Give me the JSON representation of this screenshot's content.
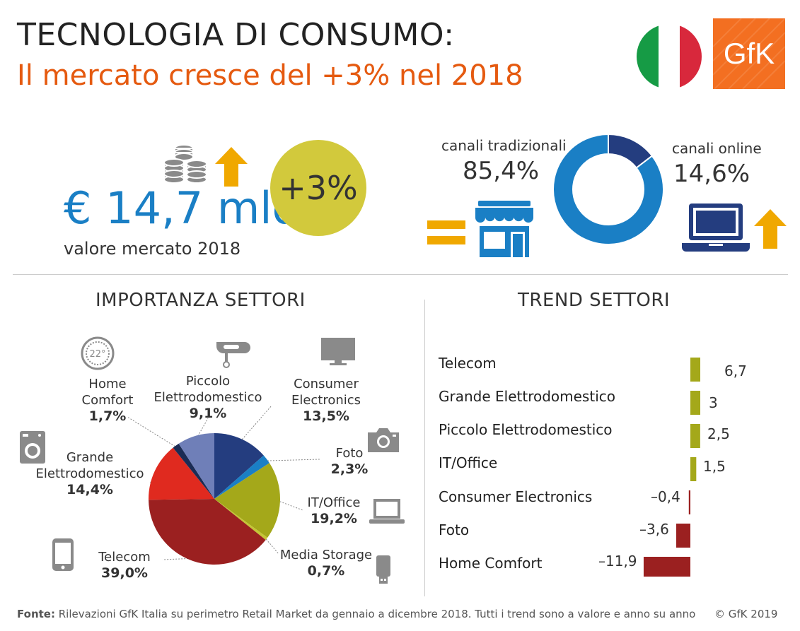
{
  "header": {
    "title": "TECNOLOGIA DI CONSUMO:",
    "subtitle": "Il mercato cresce del +3% nel 2018",
    "logo_text": "GfK"
  },
  "colors": {
    "accent_orange": "#e55a10",
    "value_blue": "#1a7fc5",
    "growth_yellow": "#d2c93c",
    "arrow_orange": "#f0a800",
    "positive_bar": "#a4a81a",
    "negative_bar": "#9b2020",
    "flag": [
      "#169b45",
      "#ffffff",
      "#d8283c"
    ]
  },
  "market": {
    "value": "€ 14,7 mld.",
    "label": "valore mercato 2018",
    "growth": "+3%"
  },
  "channels": {
    "traditional_label": "canali tradizionali",
    "traditional_value": "85,4%",
    "traditional_share": 85.4,
    "online_label": "canali online",
    "online_value": "14,6%",
    "online_share": 14.6
  },
  "sections": {
    "importance_title": "IMPORTANZA SETTORI",
    "trend_title": "TREND SETTORI"
  },
  "chart_data": [
    {
      "type": "pie",
      "title": "IMPORTANZA SETTORI",
      "slices": [
        {
          "name": "Consumer Electronics",
          "line1": "Consumer",
          "line2": "Electronics",
          "label": "13,5%",
          "value": 13.5,
          "color": "#243d7f",
          "icon": "tv-icon"
        },
        {
          "name": "Foto",
          "line1": "Foto",
          "line2": "",
          "label": "2,3%",
          "value": 2.3,
          "color": "#1a7fc5",
          "icon": "camera-icon"
        },
        {
          "name": "IT/Office",
          "line1": "IT/Office",
          "line2": "",
          "label": "19,2%",
          "value": 19.2,
          "color": "#a4a81a",
          "icon": "laptop-icon"
        },
        {
          "name": "Media Storage",
          "line1": "Media Storage",
          "line2": "",
          "label": "0,7%",
          "value": 0.7,
          "color": "#c5c535",
          "icon": "usb-drive-icon"
        },
        {
          "name": "Telecom",
          "line1": "Telecom",
          "line2": "",
          "label": "39,0%",
          "value": 39.0,
          "color": "#9b2020",
          "icon": "smartphone-icon"
        },
        {
          "name": "Grande Elettrodomestico",
          "line1": "Grande",
          "line2": "Elettrodomestico",
          "label": "14,4%",
          "value": 14.4,
          "color": "#e02a1f",
          "icon": "washing-machine-icon"
        },
        {
          "name": "Home Comfort",
          "line1": "Home",
          "line2": "Comfort",
          "label": "1,7%",
          "value": 1.7,
          "color": "#1b2c55",
          "icon": "thermostat-icon"
        },
        {
          "name": "Piccolo Elettrodomestico",
          "line1": "Piccolo",
          "line2": "Elettrodomestico",
          "label": "9,1%",
          "value": 9.1,
          "color": "#6f7fb8",
          "icon": "hand-mixer-icon"
        }
      ]
    },
    {
      "type": "bar",
      "title": "TREND SETTORI",
      "categories": [
        "Telecom",
        "Grande Elettrodomestico",
        "Piccolo Elettrodomestico",
        "IT/Office",
        "Consumer Electronics",
        "Foto",
        "Home Comfort"
      ],
      "values": [
        6.7,
        3,
        2.5,
        1.5,
        -0.4,
        -3.6,
        -11.9
      ],
      "labels": [
        "6,7",
        "3",
        "2,5",
        "1,5",
        "–0,4",
        "–3,6",
        "–11,9"
      ]
    }
  ],
  "footer": {
    "source_label": "Fonte:",
    "source_text": "Rilevazioni GfK Italia su perimetro Retail Market da gennaio a dicembre 2018. Tutti i trend sono a valore e anno su anno",
    "copyright": "© GfK 2019"
  }
}
